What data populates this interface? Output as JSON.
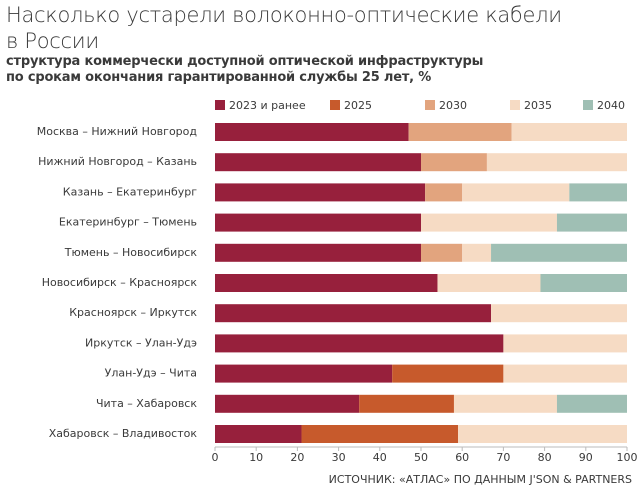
{
  "chart_data": {
    "type": "stacked-bar-horizontal",
    "title": "Насколько устарели волоконно-оптические кабели\nв России",
    "subtitle": "структура коммерчески доступной оптической инфраструктуры\nпо срокам окончания гарантированной службы 25 лет, %",
    "source": "ИСТОЧНИК: «АТЛАС» ПО ДАННЫМ J'SON & PARTNERS",
    "categories": [
      "Москва – Нижний Новгород",
      "Нижний Новгород – Казань",
      "Казань – Екатеринбург",
      "Екатеринбург – Тюмень",
      "Тюмень – Новосибирск",
      "Новосибирск – Красноярск",
      "Красноярск – Иркутск",
      "Иркутск – Улан-Удэ",
      "Улан-Удэ – Чита",
      "Чита – Хабаровск",
      "Хабаровск – Владивосток"
    ],
    "series": [
      {
        "name": "2023 и ранее",
        "color": "#97203c",
        "values": [
          47,
          50,
          51,
          50,
          50,
          54,
          67,
          70,
          43,
          35,
          21
        ]
      },
      {
        "name": "2025",
        "color": "#c75a2c",
        "values": [
          0,
          0,
          0,
          0,
          0,
          0,
          0,
          0,
          27,
          23,
          38
        ]
      },
      {
        "name": "2030",
        "color": "#e2a47e",
        "values": [
          25,
          16,
          9,
          0,
          10,
          0,
          0,
          0,
          0,
          0,
          0
        ]
      },
      {
        "name": "2035",
        "color": "#f6dbc4",
        "values": [
          28,
          34,
          26,
          33,
          7,
          25,
          33,
          30,
          30,
          25,
          41
        ]
      },
      {
        "name": "2040",
        "color": "#9fbfb4",
        "values": [
          0,
          0,
          14,
          17,
          33,
          21,
          0,
          0,
          0,
          17,
          0
        ]
      }
    ],
    "xlim": [
      0,
      100
    ],
    "xticks": [
      0,
      10,
      20,
      30,
      40,
      50,
      60,
      70,
      80,
      90,
      100
    ],
    "legend": "top"
  }
}
